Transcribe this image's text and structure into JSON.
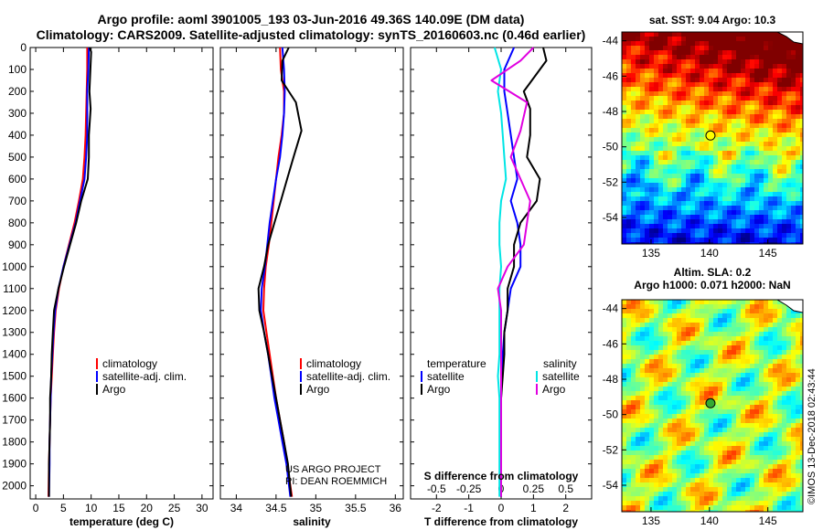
{
  "title_line1": "Argo profile: aoml 3901005_193 03-Jun-2016 49.36S 140.09E (DM data)",
  "title_line2": "Climatology: CARS2009. Satellite-adjusted climatology: synTS_20160603.nc (0.46d earlier)",
  "colors": {
    "climatology": "#ff0000",
    "satellite": "#0000ff",
    "argo": "#000000",
    "sal_sat": "#00e5e5",
    "sal_argo": "#e000e0"
  },
  "depth_ticks": [
    0,
    100,
    200,
    300,
    400,
    500,
    600,
    700,
    800,
    900,
    1000,
    1100,
    1200,
    1300,
    1400,
    1500,
    1600,
    1700,
    1800,
    1900,
    2000
  ],
  "depth_tick_labels": [
    "0",
    "100",
    "200",
    "300",
    "400",
    "500",
    "600",
    "700",
    "800",
    "900",
    "1000",
    "1100",
    "1200",
    "1300",
    "1400",
    "1500",
    "1600",
    "1700",
    "1800",
    "1900",
    "2000"
  ],
  "chart_data": [
    {
      "type": "line",
      "xlabel": "temperature (deg C)",
      "xlim": [
        -1,
        32
      ],
      "ylim": [
        2060,
        0
      ],
      "xticks": [
        0,
        5,
        10,
        15,
        20,
        25,
        30
      ],
      "xtick_labels": [
        "0",
        "5",
        "10",
        "15",
        "20",
        "25",
        "30"
      ],
      "legend": [
        "climatology",
        "satellite-adj. clim.",
        "Argo"
      ],
      "series": [
        {
          "name": "climatology",
          "color": "#ff0000",
          "x": [
            9.3,
            9.3,
            9.2,
            9.1,
            9.0,
            8.8,
            8.5,
            7.8,
            7.0,
            6.0,
            5.0,
            4.2,
            3.6,
            3.3,
            3.1,
            2.9,
            2.7,
            2.6,
            2.5,
            2.4,
            2.3
          ],
          "y": [
            0,
            100,
            200,
            300,
            400,
            500,
            600,
            700,
            800,
            900,
            1000,
            1100,
            1200,
            1300,
            1400,
            1500,
            1600,
            1700,
            1800,
            1900,
            2050
          ]
        },
        {
          "name": "satellite-adj. clim.",
          "color": "#0000ff",
          "x": [
            9.6,
            9.5,
            9.3,
            9.3,
            9.3,
            9.1,
            8.8,
            8.0,
            7.2,
            6.1,
            5.0,
            4.1,
            3.5,
            3.2,
            3.0,
            2.8,
            2.7,
            2.6,
            2.5,
            2.5,
            2.4
          ],
          "y": [
            0,
            100,
            200,
            300,
            400,
            500,
            600,
            700,
            800,
            900,
            1000,
            1100,
            1200,
            1300,
            1400,
            1500,
            1600,
            1700,
            1800,
            1900,
            2050
          ]
        },
        {
          "name": "Argo",
          "color": "#000000",
          "x": [
            9.7,
            10.0,
            9.7,
            9.9,
            9.6,
            9.6,
            9.4,
            8.2,
            7.3,
            6.2,
            5.1,
            4.1,
            3.3,
            3.1,
            2.9,
            2.8,
            2.6,
            2.6,
            2.5,
            2.4,
            2.4
          ],
          "y": [
            0,
            20,
            200,
            280,
            400,
            500,
            600,
            700,
            800,
            900,
            1000,
            1100,
            1200,
            1300,
            1400,
            1500,
            1600,
            1700,
            1800,
            1900,
            2050
          ]
        }
      ]
    },
    {
      "type": "line",
      "xlabel": "salinity",
      "xlim": [
        33.8,
        36.1
      ],
      "ylim": [
        2060,
        0
      ],
      "xticks": [
        34,
        34.5,
        35,
        35.5,
        36
      ],
      "xtick_labels": [
        "34",
        "34.5",
        "35",
        "35.5",
        "36"
      ],
      "legend": [
        "climatology",
        "satellite-adj. clim.",
        "Argo"
      ],
      "series": [
        {
          "name": "climatology",
          "color": "#ff0000",
          "x": [
            34.55,
            34.56,
            34.6,
            34.6,
            34.57,
            34.53,
            34.5,
            34.47,
            34.44,
            34.41,
            34.37,
            34.35,
            34.34,
            34.38,
            34.42,
            34.46,
            34.5,
            34.55,
            34.6,
            34.64,
            34.7
          ],
          "y": [
            0,
            100,
            200,
            300,
            400,
            500,
            600,
            700,
            800,
            900,
            1000,
            1100,
            1200,
            1300,
            1400,
            1500,
            1600,
            1700,
            1800,
            1900,
            2050
          ]
        },
        {
          "name": "satellite-adj. clim.",
          "color": "#0000ff",
          "x": [
            34.58,
            34.6,
            34.61,
            34.6,
            34.58,
            34.55,
            34.5,
            34.46,
            34.42,
            34.39,
            34.36,
            34.32,
            34.31,
            34.35,
            34.4,
            34.44,
            34.48,
            34.53,
            34.58,
            34.63,
            34.68
          ],
          "y": [
            0,
            100,
            200,
            300,
            400,
            500,
            600,
            700,
            800,
            900,
            1000,
            1100,
            1200,
            1300,
            1400,
            1500,
            1600,
            1700,
            1800,
            1900,
            2050
          ]
        },
        {
          "name": "Argo",
          "color": "#000000",
          "x": [
            34.66,
            34.58,
            34.57,
            34.75,
            34.82,
            34.72,
            34.64,
            34.56,
            34.48,
            34.4,
            34.35,
            34.28,
            34.29,
            34.35,
            34.4,
            34.45,
            34.5,
            34.55,
            34.6,
            34.65,
            34.69
          ],
          "y": [
            0,
            60,
            150,
            250,
            380,
            500,
            600,
            700,
            800,
            900,
            1000,
            1100,
            1200,
            1300,
            1400,
            1500,
            1600,
            1700,
            1800,
            1900,
            2050
          ]
        }
      ],
      "annotation_line1": "US ARGO PROJECT",
      "annotation_line2": "PI: DEAN ROEMMICH"
    },
    {
      "type": "line",
      "xlabel": "T difference from climatology",
      "xlim": [
        -2.8,
        2.8
      ],
      "ylim": [
        2060,
        0
      ],
      "xticks": [
        -2,
        -1,
        0,
        1,
        2
      ],
      "xtick_labels": [
        "-2",
        "-1",
        "0",
        "1",
        "2"
      ],
      "top_axis_label": "S difference from climatology",
      "top_xticks": [
        -0.5,
        -0.25,
        0,
        0.25,
        0.5
      ],
      "top_xtick_labels": [
        "-0.5",
        "-0.25",
        "0",
        "0.25",
        "0.5"
      ],
      "legend_temperature_title": "temperature",
      "legend_salinity_title": "salinity",
      "legend_satellite": "satellite",
      "legend_argo": "Argo",
      "series": [
        {
          "name": "temperature satellite",
          "color": "#0000ff",
          "x": [
            0.4,
            0.1,
            0.1,
            0.2,
            0.3,
            0.4,
            0.5,
            0.3,
            0.5,
            0.6,
            0.6,
            0.3,
            0.2,
            0.1,
            0.05,
            0.02,
            0.0,
            0.0,
            0.0,
            0.0,
            0.0
          ],
          "y": [
            0,
            100,
            200,
            300,
            400,
            500,
            600,
            700,
            800,
            900,
            1000,
            1100,
            1200,
            1300,
            1400,
            1500,
            1600,
            1700,
            1800,
            1900,
            2050
          ]
        },
        {
          "name": "temperature Argo",
          "color": "#000000",
          "x": [
            1.3,
            1.4,
            0.7,
            0.9,
            0.9,
            0.8,
            1.2,
            1.1,
            0.6,
            0.4,
            0.4,
            0.2,
            0.2,
            0.1,
            0.1,
            0.05,
            0.0,
            0.0,
            0.0,
            0.0,
            0.0
          ],
          "y": [
            0,
            60,
            200,
            280,
            400,
            500,
            600,
            700,
            800,
            900,
            1000,
            1100,
            1200,
            1300,
            1400,
            1500,
            1600,
            1700,
            1800,
            1900,
            2050
          ]
        },
        {
          "name": "salinity satellite",
          "color": "#00e5e5",
          "x": [
            -0.2,
            0.0,
            -0.1,
            0.0,
            0.05,
            0.1,
            0.15,
            0.0,
            -0.05,
            -0.05,
            0.0,
            -0.05,
            -0.05,
            -0.05,
            -0.05,
            -0.1,
            -0.05,
            -0.05,
            -0.05,
            -0.05,
            -0.05
          ],
          "y": [
            0,
            100,
            200,
            300,
            400,
            500,
            600,
            700,
            800,
            900,
            1000,
            1100,
            1200,
            1300,
            1400,
            1500,
            1600,
            1700,
            1800,
            1900,
            2050
          ]
        },
        {
          "name": "salinity Argo",
          "color": "#e000e0",
          "x": [
            1.0,
            0.6,
            -0.3,
            0.8,
            0.6,
            0.3,
            0.6,
            0.9,
            0.8,
            0.7,
            0.2,
            -0.1,
            0.0,
            0.0,
            0.0,
            0.0,
            0.0,
            0.0,
            0.0,
            0.0,
            0.0
          ],
          "y": [
            0,
            60,
            150,
            250,
            380,
            500,
            600,
            700,
            800,
            900,
            1000,
            1100,
            1200,
            1300,
            1400,
            1500,
            1600,
            1700,
            1800,
            1900,
            2050
          ]
        }
      ]
    },
    {
      "type": "heatmap",
      "title": "sat. SST: 9.04 Argo: 10.3",
      "xlim": [
        132.5,
        148
      ],
      "ylim": [
        -55.5,
        -43.5
      ],
      "xticks": [
        135,
        140,
        145
      ],
      "xtick_labels": [
        "135",
        "140",
        "145"
      ],
      "yticks": [
        -44,
        -46,
        -48,
        -50,
        -52,
        -54
      ],
      "ytick_labels": [
        "-44",
        "-46",
        "-48",
        "-50",
        "-52",
        "-54"
      ],
      "argo_position": [
        140.09,
        -49.36
      ]
    },
    {
      "type": "heatmap",
      "title_line1": "Altim. SLA: 0.2",
      "title_line2": "Argo h1000: 0.071 h2000: NaN",
      "xlim": [
        132.5,
        148
      ],
      "ylim": [
        -55.5,
        -43.5
      ],
      "xticks": [
        135,
        140,
        145
      ],
      "xtick_labels": [
        "135",
        "140",
        "145"
      ],
      "yticks": [
        -44,
        -46,
        -48,
        -50,
        -52,
        -54
      ],
      "ytick_labels": [
        "-44",
        "-46",
        "-48",
        "-50",
        "-52",
        "-54"
      ],
      "argo_position": [
        140.09,
        -49.36
      ]
    }
  ],
  "credit": "©IMOS 13-Dec-2018 02:43:44"
}
